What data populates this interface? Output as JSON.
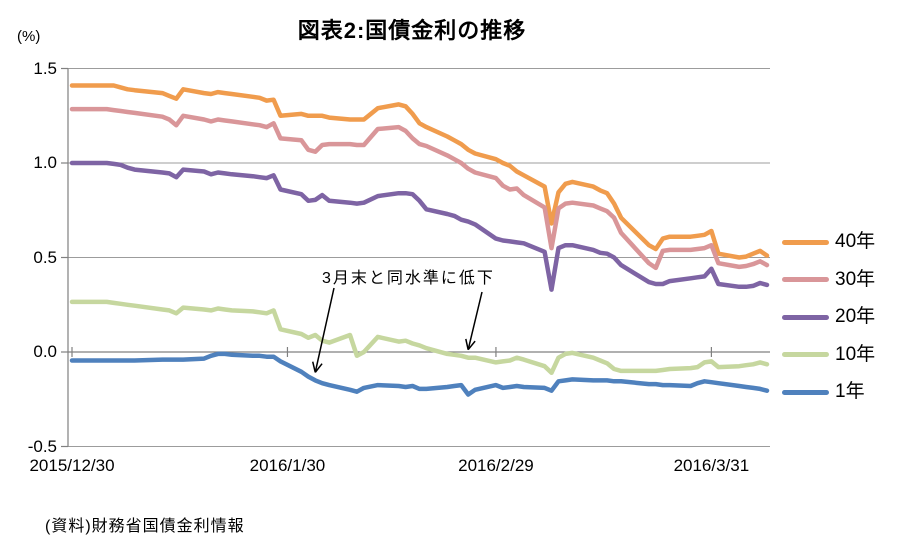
{
  "header": {
    "title": "図表2:国債金利の推移",
    "y_axis_unit": "(%)"
  },
  "source_note": "(資料)財務省国債金利情報",
  "chart_data": {
    "type": "line",
    "title": "図表2:国債金利の推移",
    "xlabel": "",
    "ylabel": "(%)",
    "ylim": [
      -0.5,
      1.5
    ],
    "yticks": [
      1.5,
      1.0,
      0.5,
      0.0,
      -0.5
    ],
    "ytick_labels": [
      "1.5",
      "1.0",
      "0.5",
      "0.0",
      "-0.5"
    ],
    "xticks": [
      {
        "label": "2015/12/30",
        "day_offset": 0
      },
      {
        "label": "2016/1/30",
        "day_offset": 31
      },
      {
        "label": "2016/2/29",
        "day_offset": 61
      },
      {
        "label": "2016/3/31",
        "day_offset": 92
      }
    ],
    "grid": true,
    "legend_position": "right",
    "grid_color": "#9C9C9C",
    "axis_color": "#808080",
    "x_dates": [
      "2015/12/30",
      "2016/1/4",
      "2016/1/5",
      "2016/1/6",
      "2016/1/7",
      "2016/1/8",
      "2016/1/12",
      "2016/1/13",
      "2016/1/14",
      "2016/1/15",
      "2016/1/18",
      "2016/1/19",
      "2016/1/20",
      "2016/1/21",
      "2016/1/22",
      "2016/1/25",
      "2016/1/26",
      "2016/1/27",
      "2016/1/28",
      "2016/1/29",
      "2016/2/1",
      "2016/2/2",
      "2016/2/3",
      "2016/2/4",
      "2016/2/5",
      "2016/2/8",
      "2016/2/9",
      "2016/2/10",
      "2016/2/12",
      "2016/2/15",
      "2016/2/16",
      "2016/2/17",
      "2016/2/18",
      "2016/2/19",
      "2016/2/22",
      "2016/2/23",
      "2016/2/24",
      "2016/2/25",
      "2016/2/26",
      "2016/2/29",
      "2016/3/1",
      "2016/3/2",
      "2016/3/3",
      "2016/3/4",
      "2016/3/7",
      "2016/3/8",
      "2016/3/9",
      "2016/3/10",
      "2016/3/11",
      "2016/3/14",
      "2016/3/15",
      "2016/3/16",
      "2016/3/17",
      "2016/3/18",
      "2016/3/22",
      "2016/3/23",
      "2016/3/24",
      "2016/3/25",
      "2016/3/28",
      "2016/3/29",
      "2016/3/30",
      "2016/3/31",
      "2016/4/1",
      "2016/4/4",
      "2016/4/5",
      "2016/4/6",
      "2016/4/7",
      "2016/4/8"
    ],
    "x_day_offsets": [
      0,
      5,
      6,
      7,
      8,
      9,
      13,
      14,
      15,
      16,
      19,
      20,
      21,
      22,
      23,
      26,
      27,
      28,
      29,
      30,
      33,
      34,
      35,
      36,
      37,
      40,
      41,
      42,
      44,
      47,
      48,
      49,
      50,
      51,
      54,
      55,
      56,
      57,
      58,
      61,
      62,
      63,
      64,
      65,
      68,
      69,
      70,
      71,
      72,
      75,
      76,
      77,
      78,
      79,
      83,
      84,
      85,
      86,
      89,
      90,
      91,
      92,
      93,
      96,
      97,
      98,
      99,
      100
    ],
    "series": [
      {
        "name": "40年",
        "color": "#F09C4D",
        "values": [
          1.41,
          1.41,
          1.41,
          1.4,
          1.39,
          1.385,
          1.37,
          1.355,
          1.34,
          1.39,
          1.37,
          1.365,
          1.375,
          1.37,
          1.365,
          1.35,
          1.345,
          1.33,
          1.335,
          1.25,
          1.26,
          1.25,
          1.25,
          1.25,
          1.24,
          1.23,
          1.23,
          1.23,
          1.29,
          1.31,
          1.3,
          1.26,
          1.21,
          1.19,
          1.14,
          1.12,
          1.1,
          1.07,
          1.05,
          1.02,
          1.0,
          0.985,
          0.955,
          0.935,
          0.875,
          0.68,
          0.845,
          0.89,
          0.9,
          0.875,
          0.855,
          0.84,
          0.785,
          0.71,
          0.565,
          0.545,
          0.6,
          0.61,
          0.61,
          0.615,
          0.62,
          0.64,
          0.52,
          0.5,
          0.505,
          0.52,
          0.535,
          0.51
        ]
      },
      {
        "name": "30年",
        "color": "#D99699",
        "values": [
          1.285,
          1.285,
          1.28,
          1.275,
          1.27,
          1.265,
          1.245,
          1.23,
          1.2,
          1.25,
          1.23,
          1.22,
          1.23,
          1.225,
          1.22,
          1.205,
          1.2,
          1.19,
          1.21,
          1.13,
          1.12,
          1.07,
          1.06,
          1.095,
          1.1,
          1.1,
          1.095,
          1.095,
          1.18,
          1.19,
          1.17,
          1.13,
          1.1,
          1.09,
          1.04,
          1.02,
          1.0,
          0.97,
          0.95,
          0.92,
          0.88,
          0.86,
          0.865,
          0.83,
          0.765,
          0.55,
          0.76,
          0.785,
          0.79,
          0.775,
          0.76,
          0.745,
          0.71,
          0.63,
          0.47,
          0.445,
          0.535,
          0.54,
          0.54,
          0.545,
          0.55,
          0.565,
          0.47,
          0.45,
          0.455,
          0.465,
          0.48,
          0.46
        ]
      },
      {
        "name": "20年",
        "color": "#7E64A4",
        "values": [
          1.0,
          1.0,
          0.995,
          0.99,
          0.975,
          0.965,
          0.95,
          0.945,
          0.925,
          0.965,
          0.955,
          0.94,
          0.95,
          0.945,
          0.94,
          0.93,
          0.925,
          0.92,
          0.935,
          0.86,
          0.835,
          0.8,
          0.805,
          0.83,
          0.8,
          0.79,
          0.785,
          0.79,
          0.825,
          0.84,
          0.84,
          0.835,
          0.8,
          0.755,
          0.73,
          0.72,
          0.7,
          0.69,
          0.675,
          0.6,
          0.59,
          0.585,
          0.58,
          0.575,
          0.53,
          0.33,
          0.55,
          0.565,
          0.565,
          0.54,
          0.525,
          0.52,
          0.5,
          0.46,
          0.37,
          0.36,
          0.36,
          0.375,
          0.39,
          0.395,
          0.4,
          0.44,
          0.36,
          0.345,
          0.345,
          0.35,
          0.365,
          0.355
        ]
      },
      {
        "name": "10年",
        "color": "#C6D79F",
        "values": [
          0.265,
          0.265,
          0.26,
          0.255,
          0.25,
          0.245,
          0.225,
          0.22,
          0.205,
          0.235,
          0.225,
          0.22,
          0.23,
          0.225,
          0.22,
          0.215,
          0.21,
          0.205,
          0.22,
          0.12,
          0.095,
          0.075,
          0.09,
          0.06,
          0.05,
          0.09,
          -0.02,
          0.0,
          0.08,
          0.055,
          0.06,
          0.045,
          0.035,
          0.02,
          -0.01,
          -0.015,
          -0.02,
          -0.03,
          -0.03,
          -0.055,
          -0.05,
          -0.045,
          -0.03,
          -0.04,
          -0.075,
          -0.11,
          -0.03,
          -0.01,
          -0.005,
          -0.03,
          -0.045,
          -0.06,
          -0.09,
          -0.1,
          -0.1,
          -0.1,
          -0.095,
          -0.09,
          -0.085,
          -0.08,
          -0.055,
          -0.05,
          -0.08,
          -0.075,
          -0.07,
          -0.065,
          -0.055,
          -0.065
        ]
      },
      {
        "name": "1年",
        "color": "#4F81BD",
        "values": [
          -0.045,
          -0.045,
          -0.045,
          -0.045,
          -0.045,
          -0.045,
          -0.04,
          -0.04,
          -0.04,
          -0.04,
          -0.035,
          -0.02,
          -0.01,
          -0.01,
          -0.015,
          -0.02,
          -0.02,
          -0.025,
          -0.025,
          -0.05,
          -0.105,
          -0.13,
          -0.15,
          -0.165,
          -0.175,
          -0.2,
          -0.21,
          -0.19,
          -0.175,
          -0.18,
          -0.185,
          -0.18,
          -0.195,
          -0.195,
          -0.185,
          -0.18,
          -0.175,
          -0.225,
          -0.2,
          -0.175,
          -0.19,
          -0.185,
          -0.18,
          -0.185,
          -0.19,
          -0.205,
          -0.155,
          -0.15,
          -0.145,
          -0.15,
          -0.15,
          -0.15,
          -0.155,
          -0.155,
          -0.17,
          -0.17,
          -0.175,
          -0.175,
          -0.18,
          -0.165,
          -0.155,
          -0.16,
          -0.165,
          -0.18,
          -0.185,
          -0.19,
          -0.195,
          -0.205
        ]
      }
    ],
    "annotation": {
      "text": "3月末と同水準に低下",
      "arrows": [
        {
          "target_series": "1年",
          "target_date": "2016/2/3"
        },
        {
          "target_series": "10年",
          "target_date": "2016/2/25"
        }
      ]
    }
  }
}
